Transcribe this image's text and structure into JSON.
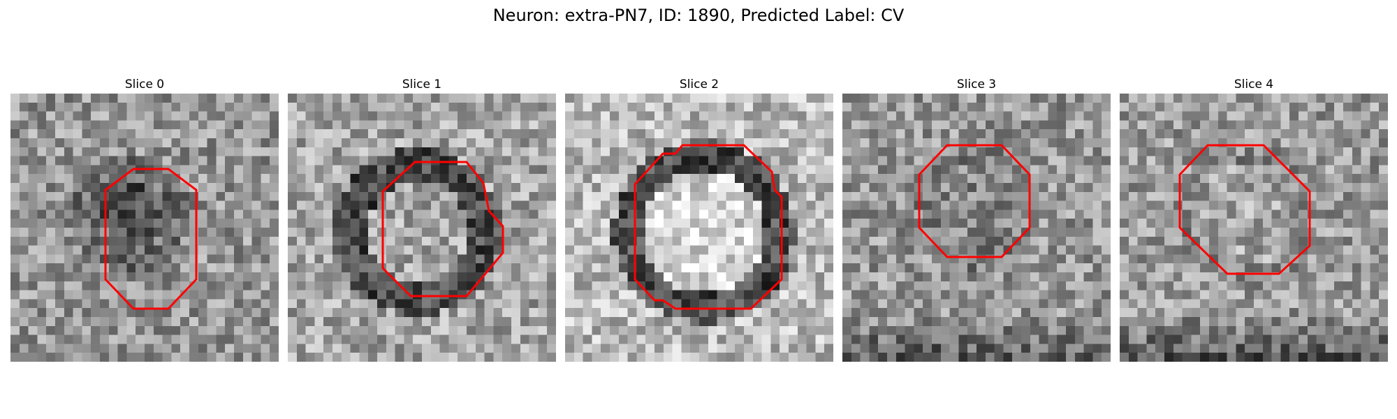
{
  "figure": {
    "title": "Neuron: extra-PN7, ID: 1890, Predicted Label: CV",
    "contour_color": "#ff0000",
    "slices": [
      {
        "label": "Slice 0"
      },
      {
        "label": "Slice 1"
      },
      {
        "label": "Slice 2"
      },
      {
        "label": "Slice 3"
      },
      {
        "label": "Slice 4"
      }
    ]
  }
}
